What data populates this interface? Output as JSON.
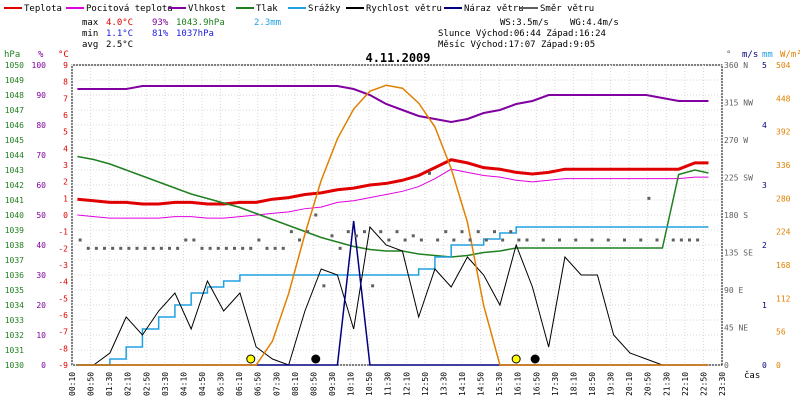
{
  "chart_data": {
    "type": "line",
    "title": "4.11.2009",
    "legend": [
      {
        "name": "Teplota",
        "color": "#e00000"
      },
      {
        "name": "Pocitová teplota",
        "color": "#e000e0"
      },
      {
        "name": "Vlhkost",
        "color": "#8000a0"
      },
      {
        "name": "Tlak",
        "color": "#208020"
      },
      {
        "name": "Srážky",
        "color": "#20a0e0"
      },
      {
        "name": "Rychlost větru",
        "color": "#000000"
      },
      {
        "name": "Náraz větru",
        "color": "#000080"
      },
      {
        "name": "Směr větru",
        "color": "#606060"
      }
    ],
    "stats": {
      "max_label": "max",
      "min_label": "min",
      "avg_label": "avg",
      "max_temp": "4.0°C",
      "max_hum": "93%",
      "max_press": "1043.9hPa",
      "max_rain": "2.3mm",
      "min_temp": "1.1°C",
      "min_hum": "81%",
      "min_press": "1037hPa",
      "avg_temp": "2.5°C",
      "ws": "WS:3.5m/s",
      "wg": "WG:4.4m/s",
      "sun": "Slunce Východ:06:44  Západ:16:24",
      "moon": "Měsíc  Východ:17:07  Západ:9:05"
    },
    "axes": {
      "hpa_unit": "hPa",
      "pct_unit": "%",
      "c_unit": "°C",
      "deg_unit": "°",
      "ms_unit": "m/s",
      "mm_unit": "mm",
      "wm_unit": "W/m²",
      "hpa_ticks": [
        "1050",
        "1049",
        "1048",
        "1047",
        "1046",
        "1045",
        "1044",
        "1043",
        "1042",
        "1041",
        "1040",
        "1039",
        "1038",
        "1037",
        "1036",
        "1035",
        "1034",
        "1033",
        "1032",
        "1031",
        "1030"
      ],
      "pct_ticks": [
        "100",
        "90",
        "80",
        "70",
        "60",
        "50",
        "40",
        "30",
        "20",
        "10",
        "0"
      ],
      "c_ticks": [
        "9",
        "8",
        "7",
        "6",
        "5",
        "4",
        "3",
        "2",
        "1",
        "0",
        "-1",
        "-2",
        "-3",
        "-4",
        "-5",
        "-6",
        "-7",
        "-8",
        "-9"
      ],
      "dir_ticks": [
        "360 N",
        "315 NW",
        "270 W",
        "225 SW",
        "180 S",
        "135 SE",
        "90 E",
        "45 NE",
        "0"
      ],
      "ms_ticks": [
        "5",
        "4",
        "3",
        "2",
        "1",
        "0"
      ],
      "wm_ticks": [
        "504",
        "448",
        "392",
        "336",
        "280",
        "224",
        "168",
        "112",
        "56",
        "0"
      ],
      "x_ticks": [
        "00:10",
        "00:50",
        "01:30",
        "02:10",
        "02:50",
        "03:30",
        "04:10",
        "04:50",
        "05:30",
        "06:10",
        "06:50",
        "07:30",
        "08:10",
        "08:50",
        "09:30",
        "10:10",
        "10:50",
        "11:30",
        "12:10",
        "12:50",
        "13:30",
        "14:10",
        "14:50",
        "15:30",
        "16:10",
        "16:50",
        "17:30",
        "18:10",
        "18:50",
        "19:30",
        "20:10",
        "20:50",
        "21:30",
        "22:10",
        "22:50",
        "23:30"
      ],
      "x_label": "čas"
    },
    "x_hours": [
      0.2,
      0.8,
      1.4,
      2,
      2.6,
      3.2,
      3.8,
      4.4,
      5,
      5.6,
      6.2,
      6.8,
      7.4,
      8,
      8.6,
      9.2,
      9.8,
      10.4,
      11,
      11.6,
      12.2,
      12.8,
      13.4,
      14,
      14.6,
      15.2,
      15.8,
      16.4,
      17,
      17.6,
      18.2,
      18.8,
      19.4,
      20,
      20.6,
      21.2,
      21.8,
      22.4,
      23,
      23.5
    ],
    "series": [
      {
        "key": "temperature",
        "values": [
          1.5,
          1.4,
          1.3,
          1.3,
          1.2,
          1.2,
          1.3,
          1.3,
          1.2,
          1.2,
          1.3,
          1.3,
          1.5,
          1.6,
          1.8,
          1.9,
          2.1,
          2.2,
          2.4,
          2.5,
          2.7,
          3.0,
          3.5,
          4.0,
          3.8,
          3.5,
          3.4,
          3.2,
          3.1,
          3.2,
          3.4,
          3.4,
          3.4,
          3.4,
          3.4,
          3.4,
          3.4,
          3.4,
          3.8,
          3.8
        ]
      },
      {
        "key": "feels_like",
        "values": [
          0.5,
          0.4,
          0.3,
          0.3,
          0.3,
          0.3,
          0.4,
          0.4,
          0.3,
          0.3,
          0.4,
          0.5,
          0.6,
          0.7,
          0.9,
          1.0,
          1.3,
          1.4,
          1.6,
          1.8,
          2.0,
          2.3,
          2.8,
          3.4,
          3.2,
          3.0,
          2.9,
          2.7,
          2.6,
          2.7,
          2.8,
          2.8,
          2.8,
          2.8,
          2.8,
          2.8,
          2.8,
          2.8,
          2.9,
          2.9
        ]
      },
      {
        "key": "humidity",
        "values": [
          92,
          92,
          92,
          92,
          93,
          93,
          93,
          93,
          93,
          93,
          93,
          93,
          93,
          93,
          93,
          93,
          93,
          92,
          90,
          87,
          85,
          83,
          82,
          81,
          82,
          84,
          85,
          87,
          88,
          90,
          90,
          90,
          90,
          90,
          90,
          90,
          89,
          88,
          88,
          88
        ]
      },
      {
        "key": "pressure",
        "values": [
          1043.9,
          1043.7,
          1043.4,
          1043.0,
          1042.6,
          1042.2,
          1041.8,
          1041.4,
          1041.1,
          1040.8,
          1040.5,
          1040.1,
          1039.7,
          1039.3,
          1038.9,
          1038.5,
          1038.2,
          1037.9,
          1037.7,
          1037.6,
          1037.6,
          1037.4,
          1037.3,
          1037.2,
          1037.3,
          1037.5,
          1037.6,
          1037.8,
          1037.8,
          1037.8,
          1037.8,
          1037.8,
          1037.8,
          1037.8,
          1037.8,
          1037.8,
          1037.8,
          1042.7,
          1043.0,
          1042.8
        ]
      },
      {
        "key": "rain",
        "values": [
          0,
          0,
          0.1,
          0.3,
          0.6,
          0.8,
          1.0,
          1.2,
          1.3,
          1.4,
          1.5,
          1.5,
          1.5,
          1.5,
          1.5,
          1.5,
          1.5,
          1.5,
          1.5,
          1.5,
          1.5,
          1.6,
          1.8,
          2.0,
          2.0,
          2.1,
          2.2,
          2.3,
          2.3,
          2.3,
          2.3,
          2.3,
          2.3,
          2.3,
          2.3,
          2.3,
          2.3,
          2.3,
          2.3,
          2.3
        ]
      },
      {
        "key": "wind_speed",
        "values": [
          0,
          0,
          0.2,
          0.8,
          0.5,
          0.9,
          1.2,
          0.6,
          1.4,
          0.9,
          1.2,
          0.3,
          0.1,
          0,
          0.9,
          1.6,
          1.5,
          0.6,
          2.3,
          2.0,
          1.9,
          0.8,
          1.6,
          1.3,
          1.8,
          1.5,
          1.0,
          2.0,
          1.3,
          0.3,
          1.8,
          1.5,
          1.5,
          0.5,
          0.2,
          0.1,
          0,
          0,
          0,
          0
        ]
      },
      {
        "key": "wind_gust",
        "values": [
          0,
          0,
          0,
          0,
          0,
          0,
          0,
          0,
          0,
          0,
          0,
          0,
          0,
          0,
          0,
          0,
          0,
          2.4,
          0,
          0,
          0,
          0,
          0,
          0,
          0,
          0,
          0,
          0,
          0,
          0,
          0,
          0,
          0,
          0,
          0,
          0,
          0,
          0,
          0,
          0
        ]
      },
      {
        "key": "solar",
        "values": [
          0,
          0,
          0,
          0,
          0,
          0,
          0,
          0,
          0,
          0,
          0,
          0,
          40,
          120,
          220,
          310,
          380,
          430,
          460,
          470,
          465,
          440,
          400,
          330,
          240,
          100,
          0,
          0,
          0,
          0,
          0,
          0,
          0,
          0,
          0,
          0,
          0,
          0,
          0,
          0
        ]
      }
    ],
    "wind_dir_points": [
      [
        0.3,
        150
      ],
      [
        0.6,
        140
      ],
      [
        0.9,
        140
      ],
      [
        1.2,
        140
      ],
      [
        1.5,
        140
      ],
      [
        1.8,
        140
      ],
      [
        2.1,
        140
      ],
      [
        2.4,
        140
      ],
      [
        2.7,
        140
      ],
      [
        3.0,
        140
      ],
      [
        3.3,
        140
      ],
      [
        3.6,
        140
      ],
      [
        3.9,
        140
      ],
      [
        4.2,
        150
      ],
      [
        4.5,
        150
      ],
      [
        4.8,
        140
      ],
      [
        5.1,
        140
      ],
      [
        5.4,
        140
      ],
      [
        5.7,
        140
      ],
      [
        6.0,
        140
      ],
      [
        6.3,
        140
      ],
      [
        6.6,
        140
      ],
      [
        6.9,
        150
      ],
      [
        7.2,
        140
      ],
      [
        7.5,
        140
      ],
      [
        7.8,
        140
      ],
      [
        8.1,
        160
      ],
      [
        8.4,
        150
      ],
      [
        8.7,
        160
      ],
      [
        9.0,
        180
      ],
      [
        9.3,
        95
      ],
      [
        9.6,
        155
      ],
      [
        9.9,
        140
      ],
      [
        10.2,
        160
      ],
      [
        10.5,
        155
      ],
      [
        10.8,
        160
      ],
      [
        11.1,
        95
      ],
      [
        11.4,
        160
      ],
      [
        11.7,
        150
      ],
      [
        12.0,
        160
      ],
      [
        12.3,
        150
      ],
      [
        12.6,
        155
      ],
      [
        12.9,
        150
      ],
      [
        13.2,
        230
      ],
      [
        13.5,
        150
      ],
      [
        13.8,
        160
      ],
      [
        14.1,
        150
      ],
      [
        14.4,
        160
      ],
      [
        14.7,
        150
      ],
      [
        15.0,
        160
      ],
      [
        15.3,
        150
      ],
      [
        15.6,
        160
      ],
      [
        15.9,
        150
      ],
      [
        16.2,
        160
      ],
      [
        16.5,
        150
      ],
      [
        16.8,
        150
      ],
      [
        17.4,
        150
      ],
      [
        18.0,
        150
      ],
      [
        18.6,
        150
      ],
      [
        19.2,
        150
      ],
      [
        19.8,
        150
      ],
      [
        20.4,
        150
      ],
      [
        21.0,
        150
      ],
      [
        21.3,
        200
      ],
      [
        21.6,
        150
      ],
      [
        22.2,
        150
      ],
      [
        22.5,
        150
      ],
      [
        22.8,
        150
      ],
      [
        23.1,
        150
      ]
    ],
    "markers": [
      {
        "hour": 6.6,
        "type": "sunrise",
        "color": "#ffff00"
      },
      {
        "hour": 9.0,
        "type": "moonset",
        "color": "#000000"
      },
      {
        "hour": 16.4,
        "type": "sunset",
        "color": "#ffff00"
      },
      {
        "hour": 17.1,
        "type": "moonrise",
        "color": "#000000"
      }
    ]
  }
}
